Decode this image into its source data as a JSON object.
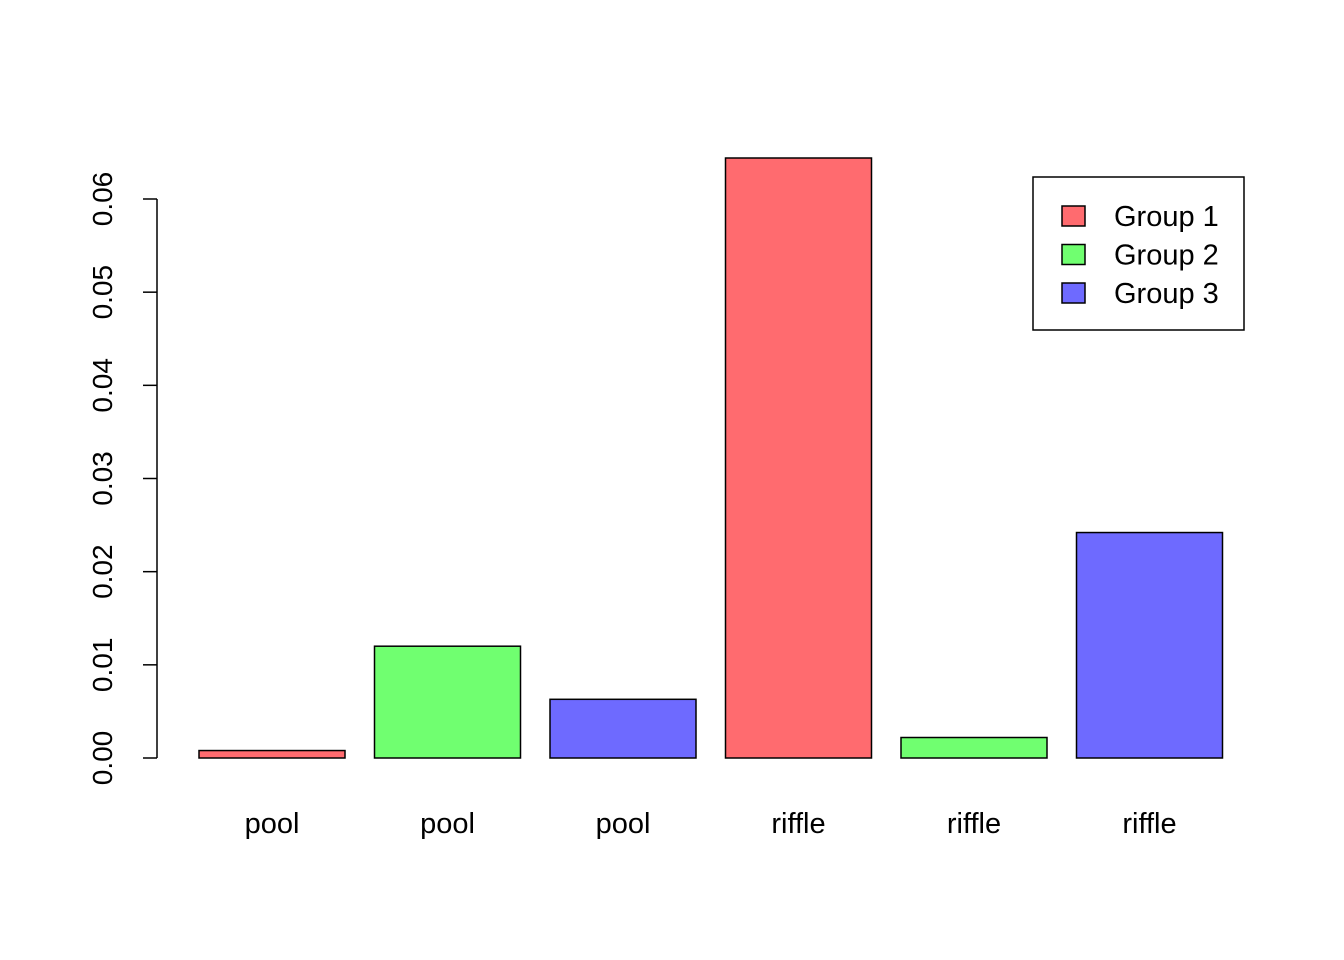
{
  "chart_data": {
    "type": "bar",
    "title": "",
    "xlabel": "",
    "ylabel": "",
    "categories": [
      "pool",
      "pool",
      "pool",
      "riffle",
      "riffle",
      "riffle"
    ],
    "values": [
      0.0008,
      0.012,
      0.0063,
      0.0644,
      0.0022,
      0.0242
    ],
    "groups": [
      "Group 1",
      "Group 2",
      "Group 3",
      "Group 1",
      "Group 2",
      "Group 3"
    ],
    "ylim": [
      0,
      0.06
    ],
    "yticks": [
      "0.00",
      "0.01",
      "0.02",
      "0.03",
      "0.04",
      "0.05",
      "0.06"
    ],
    "grid": false,
    "legend": {
      "position": "top-right",
      "items": [
        {
          "label": "Group 1",
          "color": "#ff6b6f"
        },
        {
          "label": "Group 2",
          "color": "#70ff70"
        },
        {
          "label": "Group 3",
          "color": "#6e6aff"
        }
      ]
    }
  }
}
